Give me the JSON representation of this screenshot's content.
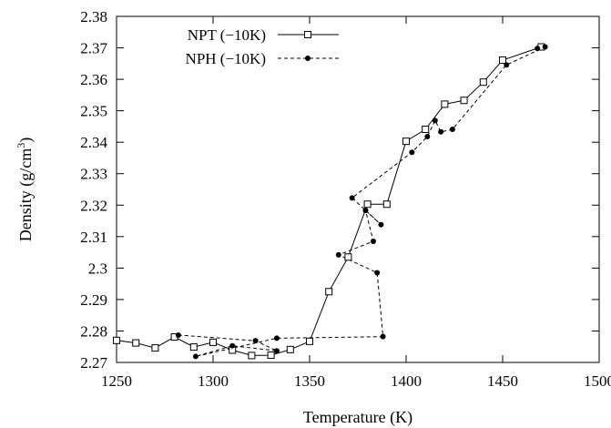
{
  "chart_data": {
    "type": "line",
    "xlabel": "Temperature (K)",
    "ylabel_main": "Density (g/cm",
    "ylabel_sup": "3",
    "ylabel_close": ")",
    "xlim": [
      1250,
      1500
    ],
    "ylim": [
      2.27,
      2.38
    ],
    "x_ticks": [
      1250,
      1300,
      1350,
      1400,
      1450,
      1500
    ],
    "x_tick_labels": [
      "1250",
      "1300",
      "1350",
      "1400",
      "1450",
      "1500"
    ],
    "y_ticks": [
      2.27,
      2.28,
      2.29,
      2.3,
      2.31,
      2.32,
      2.33,
      2.34,
      2.35,
      2.36,
      2.37,
      2.38
    ],
    "y_tick_labels": [
      "2.27",
      "2.28",
      "2.29",
      "2.3",
      "2.31",
      "2.32",
      "2.33",
      "2.34",
      "2.35",
      "2.36",
      "2.37",
      "2.38"
    ],
    "grid": false,
    "legend_position": "top-left",
    "series": [
      {
        "name": "NPT (−10K)",
        "line_style": "solid",
        "marker": "open-square",
        "color": "#000000",
        "points": [
          [
            1250,
            2.277
          ],
          [
            1260,
            2.2762
          ],
          [
            1270,
            2.2746
          ],
          [
            1280,
            2.2781
          ],
          [
            1290,
            2.2749
          ],
          [
            1300,
            2.2764
          ],
          [
            1310,
            2.2739
          ],
          [
            1320,
            2.2722
          ],
          [
            1330,
            2.2723
          ],
          [
            1340,
            2.2741
          ],
          [
            1350,
            2.2767
          ],
          [
            1360,
            2.2925
          ],
          [
            1370,
            2.3035
          ],
          [
            1380,
            2.3203
          ],
          [
            1390,
            2.3203
          ],
          [
            1400,
            2.3403
          ],
          [
            1410,
            2.3441
          ],
          [
            1420,
            2.3521
          ],
          [
            1430,
            2.3533
          ],
          [
            1440,
            2.3591
          ],
          [
            1450,
            2.3661
          ],
          [
            1470,
            2.3703
          ]
        ]
      },
      {
        "name": "NPH (−10K)",
        "line_style": "dashed",
        "marker": "filled-circle",
        "color": "#000000",
        "points": [
          [
            1282,
            2.2787
          ],
          [
            1322,
            2.2769
          ],
          [
            1333,
            2.2737
          ],
          [
            1310,
            2.2753
          ],
          [
            1291,
            2.2719
          ],
          [
            1333,
            2.2777
          ],
          [
            1388,
            2.2782
          ],
          [
            1385,
            2.2985
          ],
          [
            1365,
            2.3042
          ],
          [
            1383,
            2.3085
          ],
          [
            1379,
            2.3183
          ],
          [
            1387,
            2.3138
          ],
          [
            1372,
            2.3223
          ],
          [
            1403,
            2.3368
          ],
          [
            1411,
            2.3418
          ],
          [
            1415,
            2.3469
          ],
          [
            1418,
            2.3433
          ],
          [
            1424,
            2.3441
          ],
          [
            1452,
            2.3646
          ],
          [
            1472,
            2.3703
          ],
          [
            1468,
            2.3698
          ]
        ]
      }
    ]
  }
}
